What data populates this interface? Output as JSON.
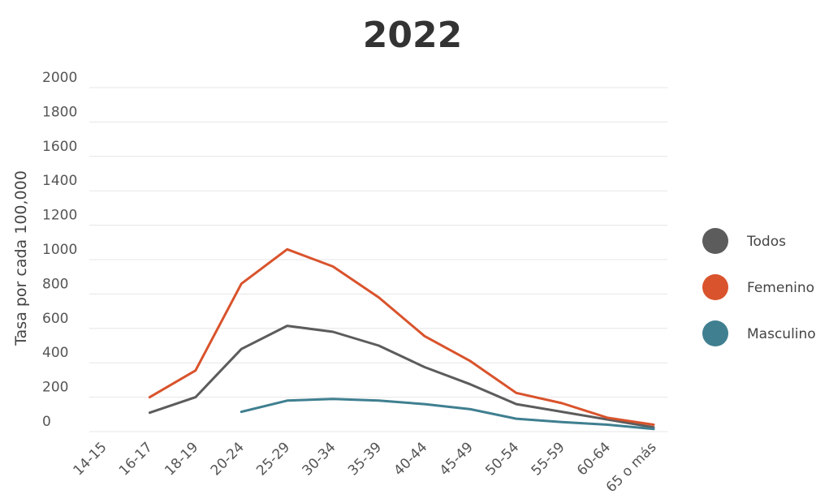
{
  "chart_data": {
    "type": "line",
    "title": "2022",
    "ylabel": "Tasa por cada 100,000",
    "xlabel": "",
    "categories": [
      "14-15",
      "16-17",
      "18-19",
      "20-24",
      "25-29",
      "30-34",
      "35-39",
      "40-44",
      "45-49",
      "50-54",
      "55-59",
      "60-64",
      "65 o más"
    ],
    "ylim": [
      0,
      2000
    ],
    "yticks": [
      0,
      200,
      400,
      600,
      800,
      1000,
      1200,
      1400,
      1600,
      1800,
      2000
    ],
    "grid": true,
    "legend_position": "right",
    "series": [
      {
        "name": "Todos",
        "color": "#5c5c5c",
        "values": [
          null,
          110,
          200,
          480,
          615,
          580,
          500,
          375,
          275,
          160,
          115,
          70,
          25
        ]
      },
      {
        "name": "Femenino",
        "color": "#d9532c",
        "values": [
          null,
          200,
          355,
          860,
          1060,
          960,
          780,
          555,
          410,
          225,
          165,
          80,
          40
        ]
      },
      {
        "name": "Masculino",
        "color": "#3f7f90",
        "values": [
          null,
          null,
          null,
          115,
          180,
          190,
          180,
          160,
          130,
          75,
          55,
          40,
          15
        ]
      }
    ]
  }
}
